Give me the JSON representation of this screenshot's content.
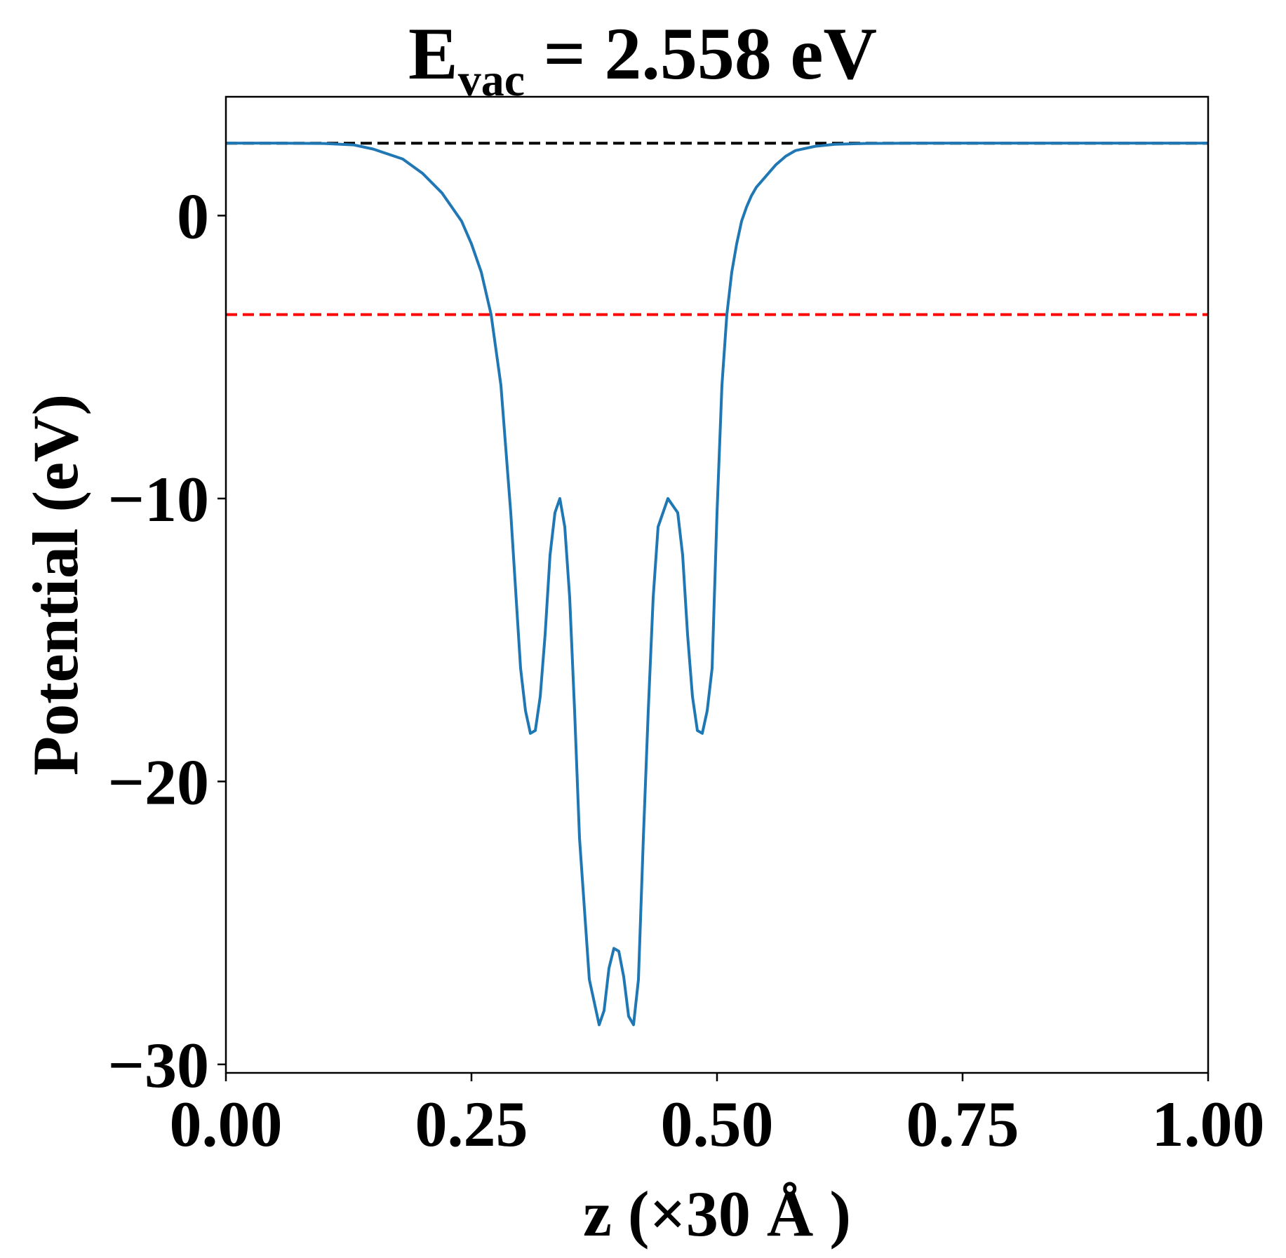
{
  "chart_data": {
    "type": "line",
    "title": {
      "symbol": "E",
      "subscript": "vac",
      "rest": " = 2.558 eV"
    },
    "xlabel": "z (×30 Å )",
    "ylabel": "Potential (eV)",
    "xlim": [
      0.0,
      1.0
    ],
    "ylim": [
      -30.3,
      4.2
    ],
    "xticks": [
      0.0,
      0.25,
      0.5,
      0.75,
      1.0
    ],
    "xtick_labels": [
      "0.00",
      "0.25",
      "0.50",
      "0.75",
      "1.00"
    ],
    "yticks": [
      0,
      -10,
      -20,
      -30
    ],
    "ytick_labels": [
      "0",
      "−10",
      "−20",
      "−30"
    ],
    "grid": false,
    "series": [
      {
        "color": "#1f77b4",
        "x": [
          0.0,
          0.05,
          0.1,
          0.13,
          0.15,
          0.18,
          0.2,
          0.22,
          0.24,
          0.25,
          0.26,
          0.27,
          0.28,
          0.29,
          0.3,
          0.305,
          0.31,
          0.315,
          0.32,
          0.325,
          0.33,
          0.335,
          0.34,
          0.345,
          0.35,
          0.355,
          0.36,
          0.37,
          0.38,
          0.385,
          0.39,
          0.395,
          0.4,
          0.405,
          0.41,
          0.415,
          0.42,
          0.425,
          0.43,
          0.435,
          0.44,
          0.45,
          0.46,
          0.465,
          0.47,
          0.475,
          0.48,
          0.485,
          0.49,
          0.495,
          0.5,
          0.505,
          0.51,
          0.515,
          0.52,
          0.525,
          0.53,
          0.535,
          0.54,
          0.55,
          0.56,
          0.57,
          0.58,
          0.6,
          0.62,
          0.65,
          0.7,
          0.8,
          0.9,
          1.0
        ],
        "y": [
          2.56,
          2.56,
          2.55,
          2.5,
          2.35,
          2.0,
          1.5,
          0.8,
          -0.2,
          -1.0,
          -2.0,
          -3.5,
          -6.0,
          -10.5,
          -16.0,
          -17.5,
          -18.3,
          -18.2,
          -17.0,
          -14.8,
          -12.0,
          -10.5,
          -10.0,
          -11.0,
          -13.5,
          -17.5,
          -22.0,
          -27.0,
          -28.6,
          -28.1,
          -26.6,
          -25.9,
          -26.0,
          -26.9,
          -28.3,
          -28.6,
          -27.0,
          -22.0,
          -17.5,
          -13.5,
          -11.0,
          -10.0,
          -10.5,
          -12.0,
          -14.8,
          -17.0,
          -18.2,
          -18.3,
          -17.5,
          -16.0,
          -10.5,
          -6.0,
          -3.5,
          -2.0,
          -1.0,
          -0.2,
          0.3,
          0.7,
          1.0,
          1.4,
          1.8,
          2.1,
          2.3,
          2.45,
          2.52,
          2.55,
          2.56,
          2.56,
          2.56,
          2.56
        ]
      }
    ],
    "reference_lines": [
      {
        "y": 2.558,
        "color": "#000000",
        "style": "dashed"
      },
      {
        "y": -3.5,
        "color": "#ff0000",
        "style": "dashed"
      }
    ]
  }
}
